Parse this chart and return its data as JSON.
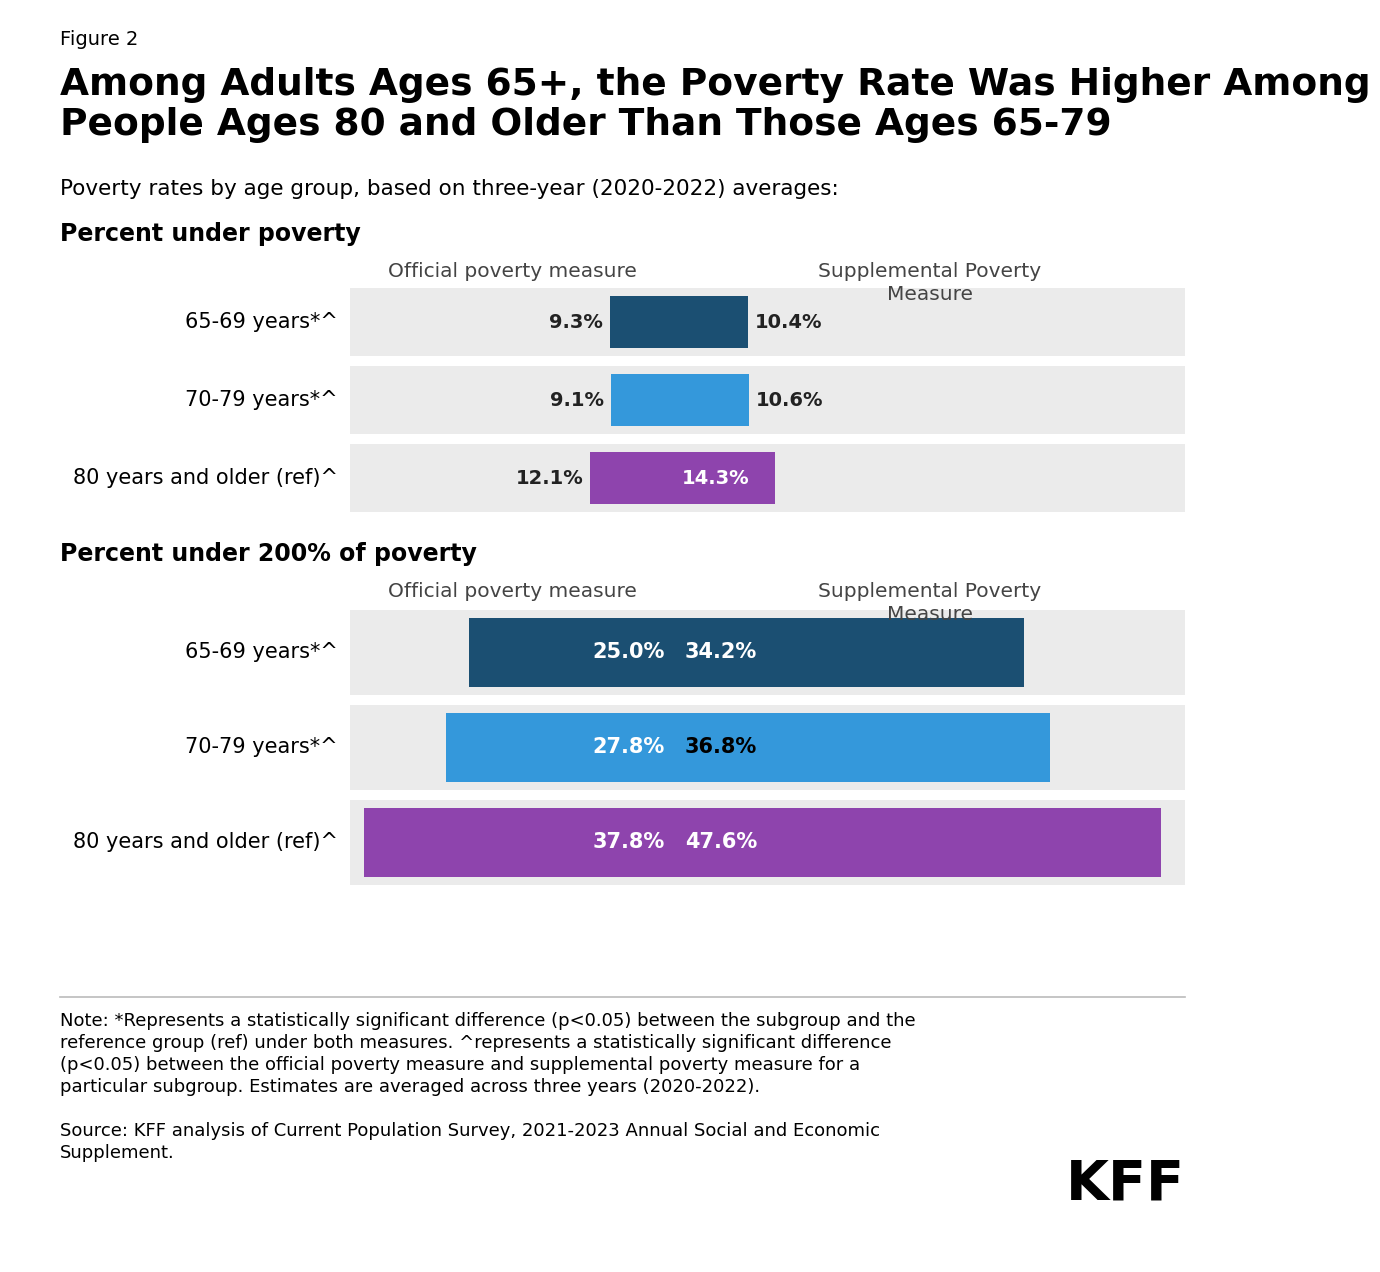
{
  "figure_label": "Figure 2",
  "title": "Among Adults Ages 65+, the Poverty Rate Was Higher Among\nPeople Ages 80 and Older Than Those Ages 65-79",
  "subtitle": "Poverty rates by age group, based on three-year (2020-2022) averages:",
  "section1_label": "Percent under poverty",
  "section2_label": "Percent under 200% of poverty",
  "col1_header": "Official poverty measure",
  "col2_header": "Supplemental Poverty\nMeasure",
  "age_groups": [
    "65-69 years*^",
    "70-79 years*^",
    "80 years and older (ref)^"
  ],
  "section1": {
    "official": [
      9.3,
      9.1,
      12.1
    ],
    "supplemental": [
      10.4,
      10.6,
      14.3
    ]
  },
  "section2": {
    "official": [
      25.0,
      27.8,
      37.8
    ],
    "supplemental": [
      34.2,
      36.8,
      47.6
    ]
  },
  "bar_colors": [
    "#1b4f72",
    "#3498db",
    "#8e44ad"
  ],
  "bg_color": "#ebebeb",
  "note_text_line1": "Note: *Represents a statistically significant difference (p<0.05) between the subgroup and the",
  "note_text_line2": "reference group (ref) under both measures. ^represents a statistically significant difference",
  "note_text_line3": "(p<0.05) between the official poverty measure and supplemental poverty measure for a",
  "note_text_line4": "particular subgroup. Estimates are averaged across three years (2020-2022).",
  "source_text_line1": "Source: KFF analysis of Current Population Survey, 2021-2023 Annual Social and Economic",
  "source_text_line2": "Supplement."
}
